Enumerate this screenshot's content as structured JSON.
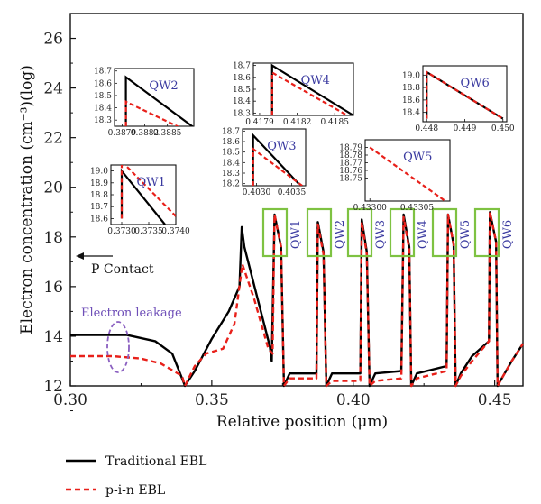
{
  "chart_data": {
    "type": "line",
    "xlabel": "Relative position (μm)",
    "ylabel": "Electron concentration (cm⁻³)(log)",
    "xlim": [
      0.3,
      0.46
    ],
    "ylim": [
      12,
      27
    ],
    "xticks": [
      "0.30",
      "0.35",
      "0.40",
      "0.45"
    ],
    "yticks": [
      "12",
      "14",
      "16",
      "18",
      "20",
      "22",
      "24",
      "26"
    ],
    "series": [
      {
        "name": "Traditional EBL",
        "color": "#000000",
        "style": "solid",
        "points": [
          [
            0.3,
            14.05
          ],
          [
            0.32,
            14.05
          ],
          [
            0.33,
            13.8
          ],
          [
            0.336,
            13.3
          ],
          [
            0.3395,
            12.3
          ],
          [
            0.3405,
            12.0
          ],
          [
            0.344,
            12.6
          ],
          [
            0.35,
            13.9
          ],
          [
            0.356,
            15.0
          ],
          [
            0.3598,
            16.0
          ],
          [
            0.3606,
            18.4
          ],
          [
            0.3615,
            17.6
          ],
          [
            0.366,
            15.6
          ],
          [
            0.3705,
            13.6
          ],
          [
            0.3712,
            13.0
          ],
          [
            0.3722,
            18.9
          ],
          [
            0.3745,
            17.6
          ],
          [
            0.3755,
            12.0
          ],
          [
            0.3775,
            12.5
          ],
          [
            0.387,
            12.5
          ],
          [
            0.3875,
            18.6
          ],
          [
            0.3895,
            17.4
          ],
          [
            0.3905,
            12.0
          ],
          [
            0.3925,
            12.5
          ],
          [
            0.4025,
            12.5
          ],
          [
            0.403,
            18.7
          ],
          [
            0.4048,
            17.4
          ],
          [
            0.4058,
            12.0
          ],
          [
            0.4078,
            12.5
          ],
          [
            0.417,
            12.6
          ],
          [
            0.4178,
            18.9
          ],
          [
            0.4198,
            17.6
          ],
          [
            0.4205,
            12.0
          ],
          [
            0.4225,
            12.5
          ],
          [
            0.433,
            12.8
          ],
          [
            0.4335,
            18.9
          ],
          [
            0.4355,
            17.7
          ],
          [
            0.4362,
            12.0
          ],
          [
            0.438,
            12.5
          ],
          [
            0.442,
            13.2
          ],
          [
            0.448,
            13.8
          ],
          [
            0.4483,
            19.0
          ],
          [
            0.4505,
            17.8
          ],
          [
            0.451,
            12.0
          ],
          [
            0.4525,
            12.3
          ],
          [
            0.456,
            13.0
          ],
          [
            0.46,
            13.7
          ]
        ]
      },
      {
        "name": "p-i-n EBL",
        "color": "#e8201a",
        "style": "dashed",
        "points": [
          [
            0.3,
            13.2
          ],
          [
            0.315,
            13.2
          ],
          [
            0.325,
            13.1
          ],
          [
            0.332,
            12.9
          ],
          [
            0.3395,
            12.4
          ],
          [
            0.3405,
            12.0
          ],
          [
            0.344,
            12.8
          ],
          [
            0.348,
            13.3
          ],
          [
            0.354,
            13.5
          ],
          [
            0.358,
            14.5
          ],
          [
            0.3608,
            16.9
          ],
          [
            0.365,
            15.5
          ],
          [
            0.37,
            13.5
          ],
          [
            0.3715,
            13.3
          ],
          [
            0.3722,
            18.9
          ],
          [
            0.3745,
            17.6
          ],
          [
            0.3755,
            12.0
          ],
          [
            0.3775,
            12.3
          ],
          [
            0.387,
            12.3
          ],
          [
            0.3875,
            18.5
          ],
          [
            0.3895,
            17.3
          ],
          [
            0.3905,
            12.0
          ],
          [
            0.3925,
            12.2
          ],
          [
            0.4025,
            12.2
          ],
          [
            0.403,
            18.6
          ],
          [
            0.4048,
            17.3
          ],
          [
            0.4058,
            12.0
          ],
          [
            0.4078,
            12.2
          ],
          [
            0.417,
            12.3
          ],
          [
            0.4178,
            18.8
          ],
          [
            0.4198,
            17.5
          ],
          [
            0.4205,
            12.0
          ],
          [
            0.4225,
            12.3
          ],
          [
            0.433,
            12.6
          ],
          [
            0.4335,
            18.9
          ],
          [
            0.4355,
            17.7
          ],
          [
            0.4362,
            12.0
          ],
          [
            0.438,
            12.4
          ],
          [
            0.442,
            13.0
          ],
          [
            0.448,
            13.8
          ],
          [
            0.4483,
            19.0
          ],
          [
            0.4505,
            17.8
          ],
          [
            0.451,
            12.0
          ],
          [
            0.4525,
            12.3
          ],
          [
            0.456,
            13.0
          ],
          [
            0.46,
            13.7
          ]
        ]
      }
    ],
    "qw_labels": [
      "QW1",
      "QW2",
      "QW3",
      "QW4",
      "QW5",
      "QW6"
    ],
    "insets": [
      {
        "name": "QW1",
        "xlim": [
          0.3728,
          0.374
        ],
        "ylim": [
          18.55,
          19.05
        ],
        "xticks": [
          "0.3730",
          "0.3735",
          "0.3740"
        ],
        "yticks": [
          "19.0",
          "18.9",
          "18.8",
          "18.7",
          "18.6"
        ],
        "traditional": [
          [
            0.373,
            18.6
          ],
          [
            0.373,
            19.0
          ],
          [
            0.3738,
            18.55
          ]
        ],
        "pin": [
          [
            0.373,
            18.6
          ],
          [
            0.373,
            19.08
          ],
          [
            0.374,
            18.62
          ]
        ]
      },
      {
        "name": "QW2",
        "xlim": [
          0.3878,
          0.38885
        ],
        "ylim": [
          18.25,
          18.72
        ],
        "xticks": [
          "0.3879",
          "0.3882",
          "0.3885"
        ],
        "yticks": [
          "18.7",
          "18.6",
          "18.5",
          "18.4",
          "18.3"
        ],
        "traditional": [
          [
            0.38795,
            18.25
          ],
          [
            0.38795,
            18.65
          ],
          [
            0.38885,
            18.24
          ]
        ],
        "pin": [
          [
            0.38795,
            18.25
          ],
          [
            0.38795,
            18.45
          ],
          [
            0.3888,
            18.2
          ]
        ]
      },
      {
        "name": "QW3",
        "xlim": [
          0.4028,
          0.4037
        ],
        "ylim": [
          18.18,
          18.72
        ],
        "xticks": [
          "0.4030",
          "0.4035"
        ],
        "yticks": [
          "18.7",
          "18.6",
          "18.5",
          "18.4",
          "18.3",
          "18.2"
        ],
        "traditional": [
          [
            0.40295,
            18.18
          ],
          [
            0.40295,
            18.66
          ],
          [
            0.4036,
            18.2
          ]
        ],
        "pin": [
          [
            0.40295,
            18.18
          ],
          [
            0.40295,
            18.53
          ],
          [
            0.40365,
            18.18
          ]
        ]
      },
      {
        "name": "QW4",
        "xlim": [
          0.41785,
          0.41865
        ],
        "ylim": [
          18.28,
          18.72
        ],
        "xticks": [
          "0.4179",
          "0.4182",
          "0.4185"
        ],
        "yticks": [
          "18.7",
          "18.6",
          "18.5",
          "18.4",
          "18.3"
        ],
        "traditional": [
          [
            0.418,
            18.28
          ],
          [
            0.418,
            18.7
          ],
          [
            0.41865,
            18.28
          ]
        ],
        "pin": [
          [
            0.418,
            18.28
          ],
          [
            0.418,
            18.64
          ],
          [
            0.4186,
            18.28
          ]
        ]
      },
      {
        "name": "QW5",
        "xlim": [
          0.432995,
          0.433085
        ],
        "ylim": [
          18.72,
          18.8
        ],
        "xticks": [
          "0.43300",
          "0.43305"
        ],
        "yticks": [
          "18.79",
          "18.78",
          "18.77",
          "18.76",
          "18.75"
        ],
        "traditional": [],
        "pin": [
          [
            0.433,
            18.79
          ],
          [
            0.43308,
            18.72
          ]
        ]
      },
      {
        "name": "QW6",
        "xlim": [
          0.4479,
          0.4501
        ],
        "ylim": [
          18.25,
          19.15
        ],
        "xticks": [
          "0.448",
          "0.449",
          "0.450"
        ],
        "yticks": [
          "19.0",
          "18.8",
          "18.6",
          "18.4"
        ],
        "traditional": [
          [
            0.448,
            18.3
          ],
          [
            0.448,
            19.05
          ],
          [
            0.45,
            18.3
          ]
        ],
        "pin": [
          [
            0.448,
            18.3
          ],
          [
            0.448,
            19.05
          ],
          [
            0.45,
            18.3
          ]
        ]
      }
    ],
    "annotations": {
      "p_contact": "P Contact",
      "electron_leakage": "Electron leakage"
    },
    "legend": {
      "placement": "bottom-left",
      "entries": [
        "Traditional EBL",
        "p-i-n EBL"
      ]
    },
    "highlight_color": "#7ec242",
    "ellipse_color": "#8a5fc0"
  }
}
